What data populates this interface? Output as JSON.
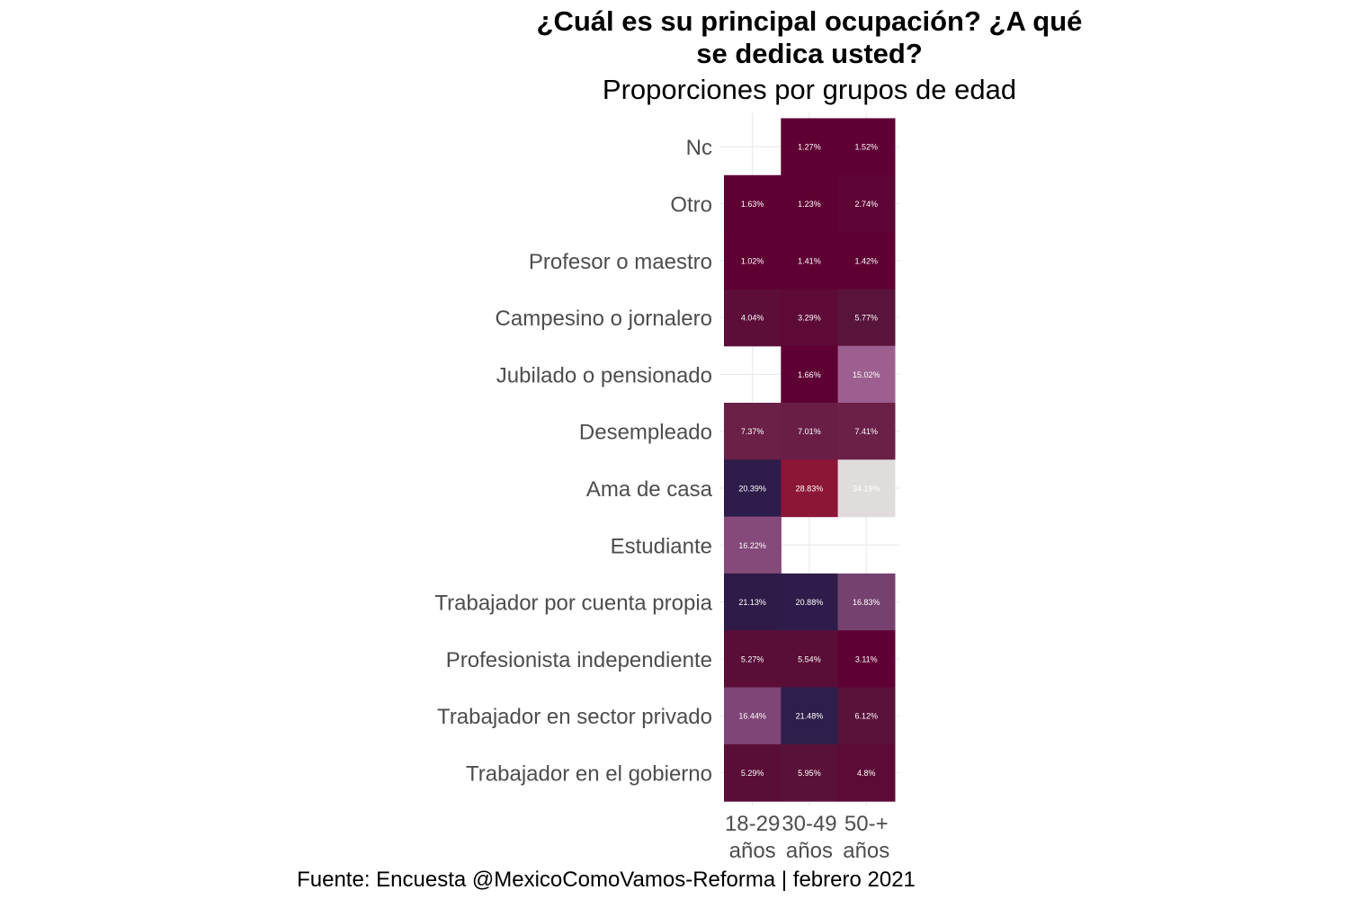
{
  "chart_data": {
    "type": "heatmap",
    "title_lines": [
      "¿Cuál es su principal ocupación? ¿A qué",
      "se dedica usted?"
    ],
    "subtitle": "Proporciones por grupos de edad",
    "caption": "Fuente: Encuesta @MexicoComoVamos-Reforma | febrero 2021",
    "x_categories": [
      {
        "line1": "18-29",
        "line2": "años"
      },
      {
        "line1": "30-49",
        "line2": "años"
      },
      {
        "line1": "50-+",
        "line2": "años"
      }
    ],
    "y_categories": [
      "Nc",
      "Otro",
      "Profesor o maestro",
      "Campesino o jornalero",
      "Jubilado o pensionado",
      "Desempleado",
      "Ama de casa",
      "Estudiante",
      "Trabajador por cuenta propia",
      "Profesionista independiente",
      "Trabajador en sector privado",
      "Trabajador en el gobierno"
    ],
    "values": [
      [
        null,
        1.27,
        1.52
      ],
      [
        1.63,
        1.23,
        2.74
      ],
      [
        1.02,
        1.41,
        1.42
      ],
      [
        4.04,
        3.29,
        5.77
      ],
      [
        null,
        1.66,
        15.02
      ],
      [
        7.37,
        7.01,
        7.41
      ],
      [
        20.39,
        28.83,
        34.19
      ],
      [
        16.22,
        null,
        null
      ],
      [
        21.13,
        20.88,
        16.83
      ],
      [
        5.27,
        5.54,
        3.11
      ],
      [
        16.44,
        21.48,
        6.12
      ],
      [
        5.29,
        5.95,
        4.8
      ]
    ],
    "value_labels": [
      [
        null,
        "1.27%",
        "1.52%"
      ],
      [
        "1.63%",
        "1.23%",
        "2.74%"
      ],
      [
        "1.02%",
        "1.41%",
        "1.42%"
      ],
      [
        "4.04%",
        "3.29%",
        "5.77%"
      ],
      [
        null,
        "1.66%",
        "15.02%"
      ],
      [
        "7.37%",
        "7.01%",
        "7.41%"
      ],
      [
        "20.39%",
        "28.83%",
        "34.19%"
      ],
      [
        "16.22%",
        null,
        null
      ],
      [
        "21.13%",
        "20.88%",
        "16.83%"
      ],
      [
        "5.27%",
        "5.54%",
        "3.11%"
      ],
      [
        "16.44%",
        "21.48%",
        "6.12%"
      ],
      [
        "5.29%",
        "5.95%",
        "4.8%"
      ]
    ],
    "colors": [
      [
        null,
        "#5f0033",
        "#5f0034"
      ],
      [
        "#5f0034",
        "#5f0033",
        "#5f0536"
      ],
      [
        "#5f0033",
        "#5f0033",
        "#5f0033"
      ],
      [
        "#5c0d38",
        "#5e0a37",
        "#59143b"
      ],
      [
        null,
        "#5f0034",
        "#9c5f8f"
      ],
      [
        "#6b2047",
        "#6a1e46",
        "#6b2048"
      ],
      [
        "#2e1c4a",
        "#8b1636",
        "#e0dcdc"
      ],
      [
        "#85497a",
        null,
        null
      ],
      [
        "#2e1b48",
        "#2e1c4a",
        "#75416f"
      ],
      [
        "#5a0e37",
        "#5a0e37",
        "#5f0034"
      ],
      [
        "#7f4577",
        "#2e1e4b",
        "#5a113a"
      ],
      [
        "#5a0e37",
        "#5a1139",
        "#5c0b37"
      ]
    ],
    "grid": true,
    "legend": "none"
  }
}
